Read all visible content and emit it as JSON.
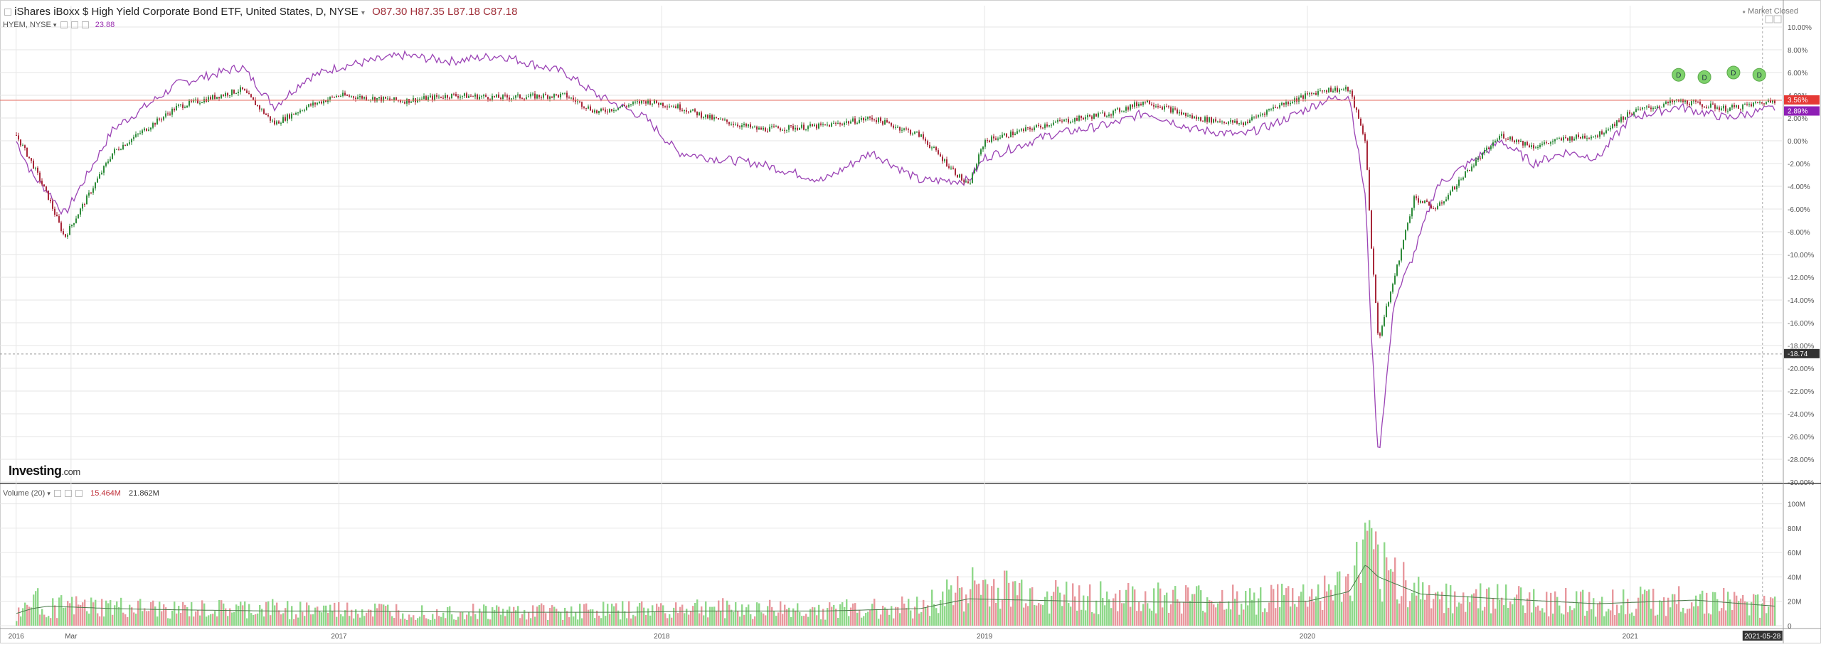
{
  "header": {
    "title": "iShares iBoxx $ High Yield Corporate Bond ETF, United States, D, NYSE",
    "ohlc": "O87.30  H87.35  L87.18  C87.18",
    "compare_symbol": "HYEM, NYSE",
    "compare_value": "23.88",
    "market_status": "Market Closed"
  },
  "volume_header": {
    "label": "Volume (20)",
    "value1": "15.464M",
    "value2": "21.862M"
  },
  "logo": {
    "main": "Investing",
    "suffix": ".com"
  },
  "colors": {
    "up": "#2e8b3a",
    "down": "#a8283a",
    "compare": "#9b43b5",
    "vol_up": "#8fd88a",
    "vol_down": "#e8989e",
    "vol_ma": "#4a7a4a",
    "grid": "#e6e6e6",
    "price_line": "#e56b5f",
    "badge_main": "#e53935",
    "badge_compare": "#8e1fb5",
    "dividend": "#7ed16b"
  },
  "chart_data": [
    {
      "type": "line",
      "description": "Main price chart, percent change since start. Candlesticks for HYG (iShares iBoxx $ High Yield Corporate Bond ETF) and line for HYEM.",
      "series": [
        {
          "name": "iShares iBoxx $ High Yield Corporate Bond ETF",
          "style": "candlestick",
          "x": [
            2016.0,
            2016.05,
            2016.1,
            2016.15,
            2016.3,
            2016.5,
            2016.7,
            2016.8,
            2016.9,
            2017.0,
            2017.2,
            2017.35,
            2017.5,
            2017.7,
            2017.8,
            2017.95,
            2018.05,
            2018.15,
            2018.3,
            2018.5,
            2018.65,
            2018.8,
            2018.95,
            2019.0,
            2019.2,
            2019.4,
            2019.5,
            2019.65,
            2019.8,
            2019.9,
            2020.05,
            2020.13,
            2020.18,
            2020.2,
            2020.22,
            2020.27,
            2020.33,
            2020.4,
            2020.5,
            2020.6,
            2020.7,
            2020.8,
            2020.9,
            2021.0,
            2021.15,
            2021.3,
            2021.45
          ],
          "y": [
            0.5,
            -2.0,
            -5.0,
            -8.5,
            -1.0,
            3.0,
            4.5,
            1.5,
            3.0,
            4.0,
            3.5,
            4.0,
            3.8,
            4.0,
            2.5,
            3.5,
            3.0,
            2.0,
            1.0,
            1.3,
            2.0,
            0.5,
            -4.0,
            0.0,
            1.5,
            2.5,
            3.5,
            2.0,
            1.5,
            3.0,
            4.5,
            4.5,
            0.0,
            -10.0,
            -17.5,
            -12.0,
            -5.0,
            -6.0,
            -2.5,
            0.5,
            -0.5,
            0.2,
            0.5,
            2.5,
            3.5,
            2.8,
            3.56
          ]
        },
        {
          "name": "HYEM",
          "style": "line",
          "x": [
            2016.0,
            2016.05,
            2016.1,
            2016.15,
            2016.3,
            2016.5,
            2016.7,
            2016.8,
            2016.9,
            2017.0,
            2017.2,
            2017.35,
            2017.5,
            2017.7,
            2017.8,
            2017.95,
            2018.05,
            2018.15,
            2018.3,
            2018.5,
            2018.65,
            2018.8,
            2018.95,
            2019.0,
            2019.2,
            2019.4,
            2019.5,
            2019.65,
            2019.8,
            2019.9,
            2020.05,
            2020.13,
            2020.18,
            2020.2,
            2020.22,
            2020.27,
            2020.33,
            2020.4,
            2020.5,
            2020.6,
            2020.7,
            2020.8,
            2020.9,
            2021.0,
            2021.15,
            2021.3,
            2021.45
          ],
          "y": [
            0.0,
            -3.0,
            -4.5,
            -6.5,
            1.0,
            5.0,
            6.5,
            3.0,
            5.5,
            6.5,
            7.5,
            7.0,
            7.5,
            6.0,
            4.0,
            2.0,
            -1.0,
            -1.5,
            -2.0,
            -3.5,
            -1.0,
            -3.5,
            -3.5,
            -1.5,
            0.5,
            1.5,
            2.5,
            1.0,
            0.5,
            1.5,
            3.5,
            4.0,
            -5.0,
            -18.0,
            -28.0,
            -14.0,
            -10.0,
            -4.0,
            -2.0,
            0.0,
            -2.0,
            -1.0,
            -1.5,
            2.0,
            3.0,
            2.0,
            2.89
          ]
        }
      ],
      "xlabel": "",
      "ylabel": "",
      "xlim": [
        2015.95,
        2021.47
      ],
      "ylim": [
        -30,
        10
      ],
      "x_tick_labels": [
        "2016",
        "Mar",
        "2017",
        "2018",
        "2019",
        "2020",
        "2021",
        "2021-05-28"
      ],
      "x_tick_values": [
        2016.0,
        2016.17,
        2017.0,
        2018.0,
        2019.0,
        2020.0,
        2021.0,
        2021.41
      ],
      "y_tick_labels": [
        "10.00%",
        "8.00%",
        "6.00%",
        "4.00%",
        "2.00%",
        "0.00%",
        "-2.00%",
        "-4.00%",
        "-6.00%",
        "-8.00%",
        "-10.00%",
        "-12.00%",
        "-14.00%",
        "-16.00%",
        "-18.00%",
        "-20.00%",
        "-22.00%",
        "-24.00%",
        "-26.00%",
        "-28.00%",
        "-30.00%"
      ],
      "y_tick_values": [
        10,
        8,
        6,
        4,
        2,
        0,
        -2,
        -4,
        -6,
        -8,
        -10,
        -12,
        -14,
        -16,
        -18,
        -20,
        -22,
        -24,
        -26,
        -28,
        -30
      ],
      "last_value_labels": [
        {
          "text": "3.56%",
          "value": 3.56
        },
        {
          "text": "2.89%",
          "value": 2.89
        }
      ],
      "crosshair_label": {
        "text": "-18.74",
        "value": -18.74
      },
      "dividend_markers": {
        "label": "D",
        "x": [
          2021.15,
          2021.23,
          2021.32,
          2021.4
        ],
        "y": [
          5.8,
          5.6,
          6.0,
          5.8
        ]
      },
      "grid": true
    },
    {
      "type": "bar",
      "description": "Volume with 20-day moving average",
      "series": [
        {
          "name": "Volume",
          "style": "bars"
        },
        {
          "name": "MA 20",
          "style": "line"
        }
      ],
      "x": [
        2016.0,
        2016.05,
        2016.1,
        2016.3,
        2016.5,
        2016.8,
        2017.0,
        2017.5,
        2017.9,
        2018.1,
        2018.5,
        2018.8,
        2018.95,
        2019.3,
        2019.7,
        2020.0,
        2020.13,
        2020.18,
        2020.22,
        2020.35,
        2020.6,
        2020.9,
        2021.2,
        2021.45
      ],
      "values": [
        8,
        20,
        15,
        14,
        12,
        13,
        12,
        11,
        12,
        14,
        12,
        15,
        30,
        22,
        20,
        22,
        30,
        55,
        45,
        25,
        20,
        18,
        20,
        15
      ],
      "ma": [
        10,
        14,
        16,
        14,
        13,
        12,
        12,
        11,
        11,
        12,
        12,
        14,
        22,
        20,
        19,
        20,
        28,
        50,
        40,
        26,
        22,
        18,
        21,
        16
      ],
      "ylim": [
        0,
        105
      ],
      "y_tick_labels": [
        "100M",
        "80M",
        "60M",
        "40M",
        "20M",
        "0"
      ],
      "y_tick_values": [
        100,
        80,
        60,
        40,
        20,
        0
      ]
    }
  ]
}
